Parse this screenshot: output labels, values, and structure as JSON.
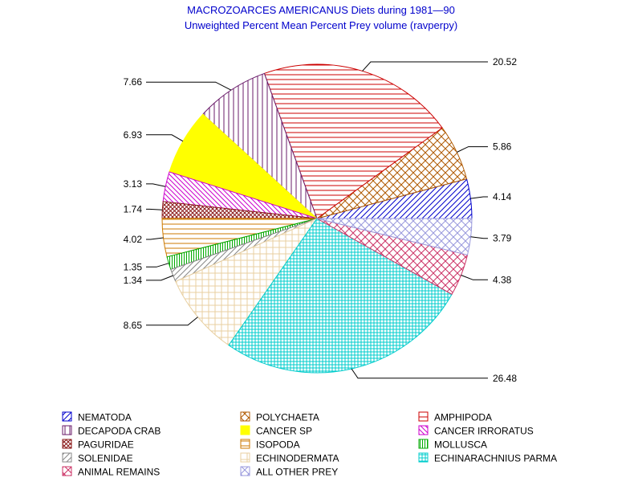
{
  "chart_data": {
    "type": "pie",
    "title": "MACROZOARCES AMERICANUS Diets during 1981—90",
    "subtitle": "Unweighted Percent Mean Percent Prey  volume (ravperpy)",
    "slices": [
      {
        "name": "NEMATODA",
        "value": 4.14,
        "label": "4.14",
        "color": "#0000cc",
        "pattern": "diag-ne"
      },
      {
        "name": "POLYCHAETA",
        "value": 5.86,
        "label": "5.86",
        "color": "#b05a00",
        "pattern": "cross-x"
      },
      {
        "name": "AMPHIPODA",
        "value": 20.52,
        "label": "20.52",
        "color": "#cc0000",
        "pattern": "hlines"
      },
      {
        "name": "DECAPODA CRAB",
        "value": 7.66,
        "label": "7.66",
        "color": "#6a1b6a",
        "pattern": "vlines"
      },
      {
        "name": "CANCER SP",
        "value": 6.93,
        "label": "6.93",
        "color": "#ffff00",
        "pattern": "solid"
      },
      {
        "name": "CANCER IRRORATUS",
        "value": 3.13,
        "label": "3.13",
        "color": "#cc00cc",
        "pattern": "diag-nw"
      },
      {
        "name": "PAGURIDAE",
        "value": 1.74,
        "label": "1.74",
        "color": "#8b1a1a",
        "pattern": "cross-x-dense"
      },
      {
        "name": "ISOPODA",
        "value": 4.02,
        "label": "4.02",
        "color": "#cc7a00",
        "pattern": "hlines"
      },
      {
        "name": "MOLLUSCA",
        "value": 1.35,
        "label": "1.35",
        "color": "#00aa00",
        "pattern": "vlines-dense"
      },
      {
        "name": "SOLENIDAE",
        "value": 1.34,
        "label": "1.34",
        "color": "#888888",
        "pattern": "diag-ne"
      },
      {
        "name": "ECHINODERMATA",
        "value": 8.65,
        "label": "8.65",
        "color": "#e8cfa0",
        "pattern": "grid"
      },
      {
        "name": "ECHINARACHNIUS PARMA",
        "value": 26.48,
        "label": "26.48",
        "color": "#00cccc",
        "pattern": "grid-dense"
      },
      {
        "name": "ANIMAL REMAINS",
        "value": 4.38,
        "label": "4.38",
        "color": "#cc3366",
        "pattern": "cross-x"
      },
      {
        "name": "ALL OTHER PREY",
        "value": 3.79,
        "label": "3.79",
        "color": "#9999dd",
        "pattern": "cross-x"
      }
    ],
    "legend": {
      "placement": "bottom",
      "columns": 3,
      "order": [
        "NEMATODA",
        "POLYCHAETA",
        "AMPHIPODA",
        "DECAPODA CRAB",
        "CANCER SP",
        "CANCER IRRORATUS",
        "PAGURIDAE",
        "ISOPODA",
        "MOLLUSCA",
        "SOLENIDAE",
        "ECHINODERMATA",
        "ECHINARACHNIUS PARMA",
        "ANIMAL REMAINS",
        "ALL OTHER PREY"
      ]
    }
  }
}
